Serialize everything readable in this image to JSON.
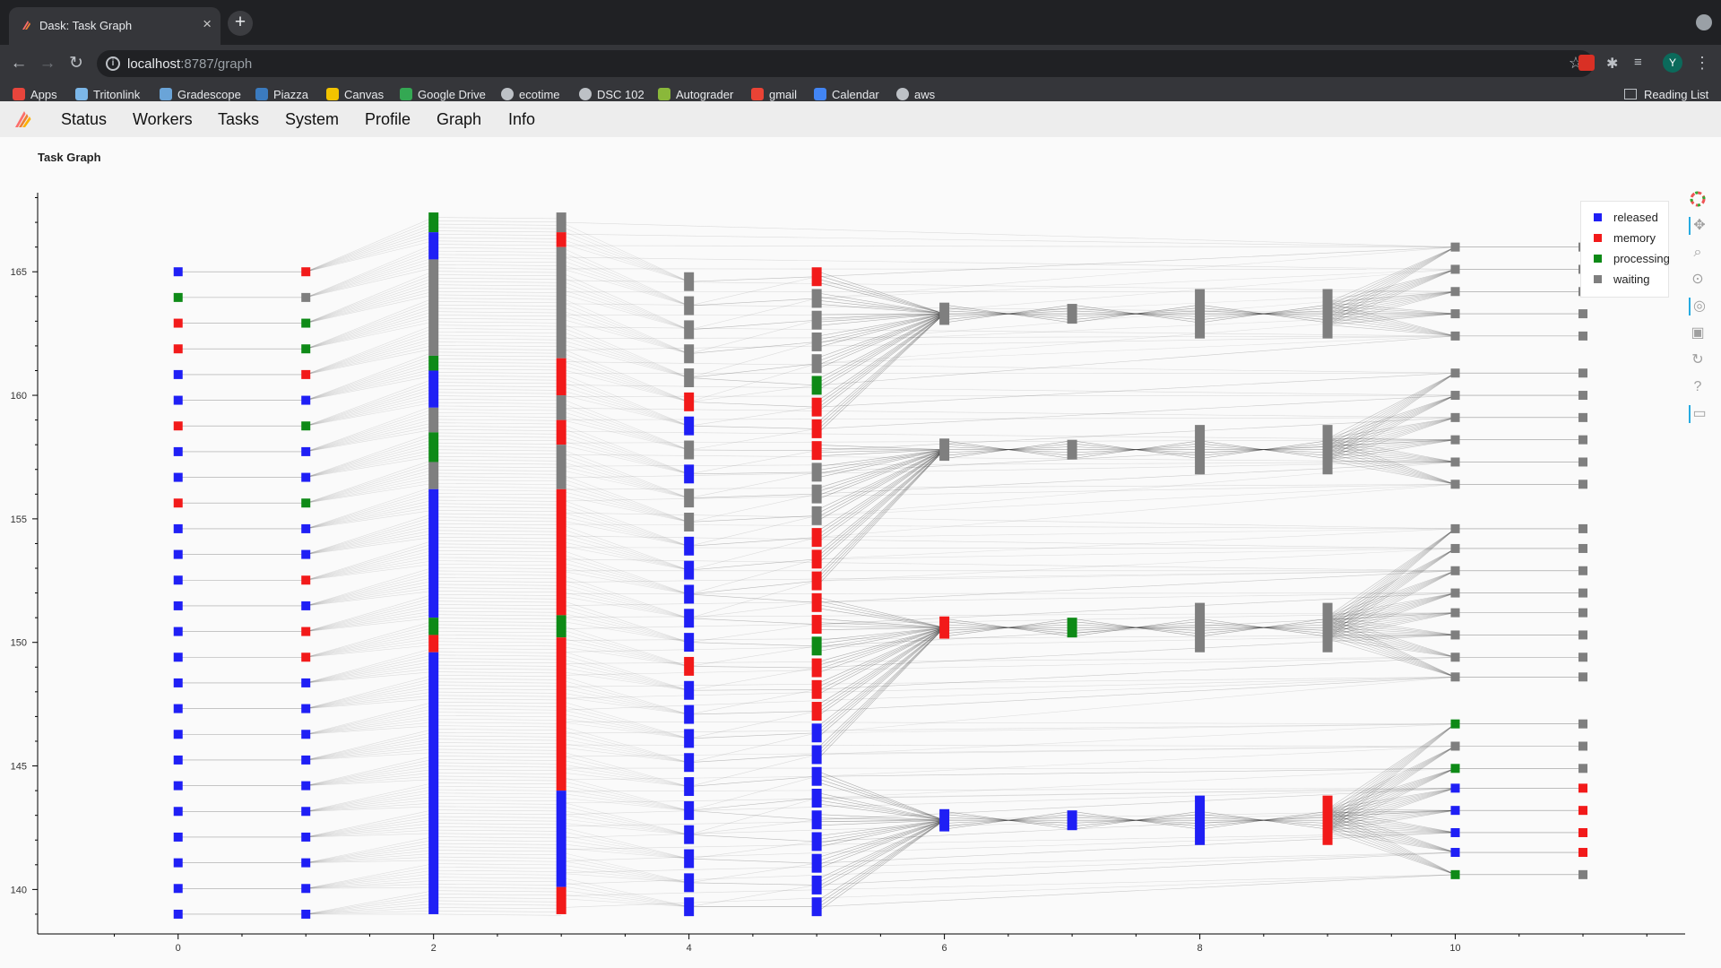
{
  "browser": {
    "tab_title": "Dask: Task Graph",
    "url_host": "localhost",
    "url_path": ":8787/graph",
    "avatar_initial": "Y",
    "bookmarks": [
      {
        "label": "Apps",
        "icon": "apps-grid-icon",
        "color": "#e8453c"
      },
      {
        "label": "Tritonlink",
        "icon": "tritonlink-icon",
        "color": "#7cb7e8"
      },
      {
        "label": "Gradescope",
        "icon": "gradescope-icon",
        "color": "#6aa4d8"
      },
      {
        "label": "Piazza",
        "icon": "piazza-icon",
        "color": "#3b7bbf"
      },
      {
        "label": "Canvas",
        "icon": "canvas-icon",
        "color": "#f2c300"
      },
      {
        "label": "Google Drive",
        "icon": "google-drive-icon",
        "color": "#34a853"
      },
      {
        "label": "ecotime",
        "icon": "globe-icon",
        "color": "#bdc1c6"
      },
      {
        "label": "DSC 102",
        "icon": "globe-icon",
        "color": "#bdc1c6"
      },
      {
        "label": "Autograder",
        "icon": "autograder-icon",
        "color": "#8ab83a"
      },
      {
        "label": "gmail",
        "icon": "gmail-icon",
        "color": "#ea4335"
      },
      {
        "label": "Calendar",
        "icon": "calendar-icon",
        "color": "#4285f4"
      },
      {
        "label": "aws",
        "icon": "globe-icon",
        "color": "#bdc1c6"
      }
    ],
    "reading_list": "Reading List"
  },
  "dask_nav": {
    "items": [
      "Status",
      "Workers",
      "Tasks",
      "System",
      "Profile",
      "Graph",
      "Info"
    ]
  },
  "page_title": "Task Graph",
  "legend": [
    {
      "label": "released",
      "color": "#1f1ff5"
    },
    {
      "label": "memory",
      "color": "#f21a1a"
    },
    {
      "label": "processing",
      "color": "#0e8a17"
    },
    {
      "label": "waiting",
      "color": "#7f7f7f"
    }
  ],
  "tools": [
    "bokeh-logo-icon",
    "pan-icon",
    "box-zoom-icon",
    "wheel-zoom-icon",
    "tap-icon",
    "save-icon",
    "reset-icon",
    "help-icon",
    "hover-icon"
  ],
  "chart_data": {
    "type": "scatter",
    "title": "",
    "xlabel": "",
    "ylabel": "",
    "xlim": [
      -1.1,
      11.8
    ],
    "ylim": [
      138.2,
      168.2
    ],
    "x_ticks": [
      0,
      2,
      4,
      6,
      8,
      10
    ],
    "y_ticks": [
      140,
      145,
      150,
      155,
      160,
      165
    ],
    "legend_position": "top-right",
    "state_colors": {
      "released": "#1f1ff5",
      "memory": "#f21a1a",
      "processing": "#0e8a17",
      "waiting": "#7f7f7f"
    },
    "col0_states": [
      "released",
      "processing",
      "memory",
      "memory",
      "released",
      "released",
      "memory",
      "released",
      "released",
      "memory",
      "released",
      "released",
      "released",
      "released",
      "released",
      "released",
      "released",
      "released",
      "released",
      "released",
      "released",
      "released",
      "released",
      "released",
      "released",
      "released"
    ],
    "col1_states": [
      "memory",
      "waiting",
      "processing",
      "processing",
      "memory",
      "released",
      "processing",
      "released",
      "released",
      "processing",
      "released",
      "released",
      "memory",
      "released",
      "memory",
      "memory",
      "released",
      "released",
      "released",
      "released",
      "released",
      "released",
      "released",
      "released",
      "released",
      "released"
    ],
    "col2_segments": [
      {
        "y0": 166.6,
        "y1": 167.4,
        "state": "processing"
      },
      {
        "y0": 165.5,
        "y1": 166.6,
        "state": "released"
      },
      {
        "y0": 161.6,
        "y1": 165.5,
        "state": "waiting"
      },
      {
        "y0": 161.0,
        "y1": 161.6,
        "state": "processing"
      },
      {
        "y0": 159.5,
        "y1": 161.0,
        "state": "released"
      },
      {
        "y0": 158.5,
        "y1": 159.5,
        "state": "waiting"
      },
      {
        "y0": 157.3,
        "y1": 158.5,
        "state": "processing"
      },
      {
        "y0": 156.2,
        "y1": 157.3,
        "state": "waiting"
      },
      {
        "y0": 151.0,
        "y1": 156.2,
        "state": "released"
      },
      {
        "y0": 150.3,
        "y1": 151.0,
        "state": "processing"
      },
      {
        "y0": 149.6,
        "y1": 150.3,
        "state": "memory"
      },
      {
        "y0": 139.0,
        "y1": 149.6,
        "state": "released"
      }
    ],
    "col3_segments": [
      {
        "y0": 166.6,
        "y1": 167.4,
        "state": "waiting"
      },
      {
        "y0": 166.0,
        "y1": 166.6,
        "state": "memory"
      },
      {
        "y0": 161.5,
        "y1": 166.0,
        "state": "waiting"
      },
      {
        "y0": 160.0,
        "y1": 161.5,
        "state": "memory"
      },
      {
        "y0": 159.0,
        "y1": 160.0,
        "state": "waiting"
      },
      {
        "y0": 158.0,
        "y1": 159.0,
        "state": "memory"
      },
      {
        "y0": 156.2,
        "y1": 158.0,
        "state": "waiting"
      },
      {
        "y0": 151.1,
        "y1": 156.2,
        "state": "memory"
      },
      {
        "y0": 150.2,
        "y1": 151.1,
        "state": "processing"
      },
      {
        "y0": 144.0,
        "y1": 150.2,
        "state": "memory"
      },
      {
        "y0": 140.1,
        "y1": 144.0,
        "state": "released"
      },
      {
        "y0": 139.0,
        "y1": 140.1,
        "state": "memory"
      }
    ],
    "col4_states": [
      "waiting",
      "waiting",
      "waiting",
      "waiting",
      "waiting",
      "memory",
      "released",
      "waiting",
      "released",
      "waiting",
      "waiting",
      "released",
      "released",
      "released",
      "released",
      "released",
      "memory",
      "released",
      "released",
      "released",
      "released",
      "released",
      "released",
      "released",
      "released",
      "released",
      "released"
    ],
    "col5_states": [
      "memory",
      "waiting",
      "waiting",
      "waiting",
      "waiting",
      "processing",
      "memory",
      "memory",
      "memory",
      "waiting",
      "waiting",
      "waiting",
      "memory",
      "memory",
      "memory",
      "memory",
      "memory",
      "processing",
      "memory",
      "memory",
      "memory",
      "released",
      "released",
      "released",
      "released",
      "released",
      "released",
      "released",
      "released",
      "released"
    ],
    "col6_nodes": [
      {
        "y": 163.3,
        "state": "waiting"
      },
      {
        "y": 157.8,
        "state": "waiting"
      },
      {
        "y": 150.6,
        "state": "memory"
      },
      {
        "y": 142.8,
        "state": "released"
      }
    ],
    "col7_nodes": [
      {
        "y": 163.3,
        "state": "waiting"
      },
      {
        "y": 157.8,
        "state": "waiting"
      },
      {
        "y": 150.6,
        "state": "processing"
      },
      {
        "y": 142.8,
        "state": "released"
      }
    ],
    "col8_nodes": [
      {
        "y": 163.3,
        "state": "waiting"
      },
      {
        "y": 157.8,
        "state": "waiting"
      },
      {
        "y": 150.6,
        "state": "waiting"
      },
      {
        "y": 142.8,
        "state": "released"
      }
    ],
    "col9_nodes": [
      {
        "y": 163.3,
        "state": "waiting"
      },
      {
        "y": 157.8,
        "state": "waiting"
      },
      {
        "y": 150.6,
        "state": "waiting"
      },
      {
        "y": 142.8,
        "state": "memory"
      }
    ],
    "col10_nodes": [
      {
        "y": 166.0,
        "state": "waiting"
      },
      {
        "y": 165.1,
        "state": "waiting"
      },
      {
        "y": 164.2,
        "state": "waiting"
      },
      {
        "y": 163.3,
        "state": "waiting"
      },
      {
        "y": 162.4,
        "state": "waiting"
      },
      {
        "y": 160.9,
        "state": "waiting"
      },
      {
        "y": 160.0,
        "state": "waiting"
      },
      {
        "y": 159.1,
        "state": "waiting"
      },
      {
        "y": 158.2,
        "state": "waiting"
      },
      {
        "y": 157.3,
        "state": "waiting"
      },
      {
        "y": 156.4,
        "state": "waiting"
      },
      {
        "y": 154.6,
        "state": "waiting"
      },
      {
        "y": 153.8,
        "state": "waiting"
      },
      {
        "y": 152.9,
        "state": "waiting"
      },
      {
        "y": 152.0,
        "state": "waiting"
      },
      {
        "y": 151.2,
        "state": "waiting"
      },
      {
        "y": 150.3,
        "state": "waiting"
      },
      {
        "y": 149.4,
        "state": "waiting"
      },
      {
        "y": 148.6,
        "state": "waiting"
      },
      {
        "y": 146.7,
        "state": "processing"
      },
      {
        "y": 145.8,
        "state": "waiting"
      },
      {
        "y": 144.9,
        "state": "processing"
      },
      {
        "y": 144.1,
        "state": "released"
      },
      {
        "y": 143.2,
        "state": "released"
      },
      {
        "y": 142.3,
        "state": "released"
      },
      {
        "y": 141.5,
        "state": "released"
      },
      {
        "y": 140.6,
        "state": "processing"
      }
    ],
    "col11_nodes": [
      {
        "y": 166.0,
        "state": "waiting"
      },
      {
        "y": 165.1,
        "state": "waiting"
      },
      {
        "y": 164.2,
        "state": "waiting"
      },
      {
        "y": 163.3,
        "state": "waiting"
      },
      {
        "y": 162.4,
        "state": "waiting"
      },
      {
        "y": 160.9,
        "state": "waiting"
      },
      {
        "y": 160.0,
        "state": "waiting"
      },
      {
        "y": 159.1,
        "state": "waiting"
      },
      {
        "y": 158.2,
        "state": "waiting"
      },
      {
        "y": 157.3,
        "state": "waiting"
      },
      {
        "y": 156.4,
        "state": "waiting"
      },
      {
        "y": 154.6,
        "state": "waiting"
      },
      {
        "y": 153.8,
        "state": "waiting"
      },
      {
        "y": 152.9,
        "state": "waiting"
      },
      {
        "y": 152.0,
        "state": "waiting"
      },
      {
        "y": 151.2,
        "state": "waiting"
      },
      {
        "y": 150.3,
        "state": "waiting"
      },
      {
        "y": 149.4,
        "state": "waiting"
      },
      {
        "y": 148.6,
        "state": "waiting"
      },
      {
        "y": 146.7,
        "state": "waiting"
      },
      {
        "y": 145.8,
        "state": "waiting"
      },
      {
        "y": 144.9,
        "state": "waiting"
      },
      {
        "y": 144.1,
        "state": "memory"
      },
      {
        "y": 143.2,
        "state": "memory"
      },
      {
        "y": 142.3,
        "state": "memory"
      },
      {
        "y": 141.5,
        "state": "memory"
      },
      {
        "y": 140.6,
        "state": "waiting"
      }
    ]
  }
}
